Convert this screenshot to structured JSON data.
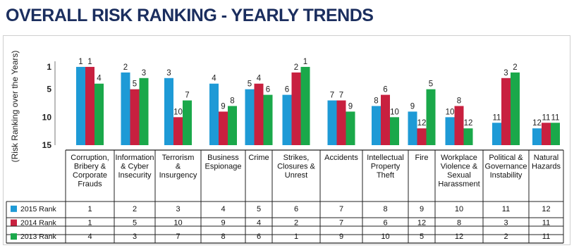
{
  "title": "OVERALL RISK RANKING - YEARLY TRENDS",
  "chart_data": {
    "type": "bar",
    "ylabel": "(Risk Ranking over the Years)",
    "ylim": [
      15,
      0
    ],
    "yticks": [
      1,
      5,
      10,
      15
    ],
    "categories": [
      [
        "Corruption,",
        "Bribery &",
        "Corporate",
        "Frauds"
      ],
      [
        "Information",
        "& Cyber",
        "Insecurity"
      ],
      [
        "Terrorism",
        "&",
        "Insurgency"
      ],
      [
        "Business",
        "Espionage"
      ],
      [
        "Crime"
      ],
      [
        "Strikes,",
        "Closures &",
        "Unrest"
      ],
      [
        "Accidents"
      ],
      [
        "Intellectual",
        "Property",
        "Theft"
      ],
      [
        "Fire"
      ],
      [
        "Workplace",
        "Violence &",
        "Sexual",
        "Harassment"
      ],
      [
        "Political &",
        "Governance",
        "Instability"
      ],
      [
        "Natural",
        "Hazards"
      ]
    ],
    "series": [
      {
        "name": "2015 Rank",
        "color": "#1e9ad6",
        "values": [
          1,
          2,
          3,
          4,
          5,
          6,
          7,
          8,
          9,
          10,
          11,
          12
        ]
      },
      {
        "name": "2014 Rank",
        "color": "#c8203f",
        "values": [
          1,
          5,
          10,
          9,
          4,
          2,
          7,
          6,
          12,
          8,
          3,
          11
        ]
      },
      {
        "name": "2013 Rank",
        "color": "#1aa84a",
        "values": [
          4,
          3,
          7,
          8,
          6,
          1,
          9,
          10,
          5,
          12,
          2,
          11
        ]
      }
    ],
    "legend": "table-left"
  }
}
